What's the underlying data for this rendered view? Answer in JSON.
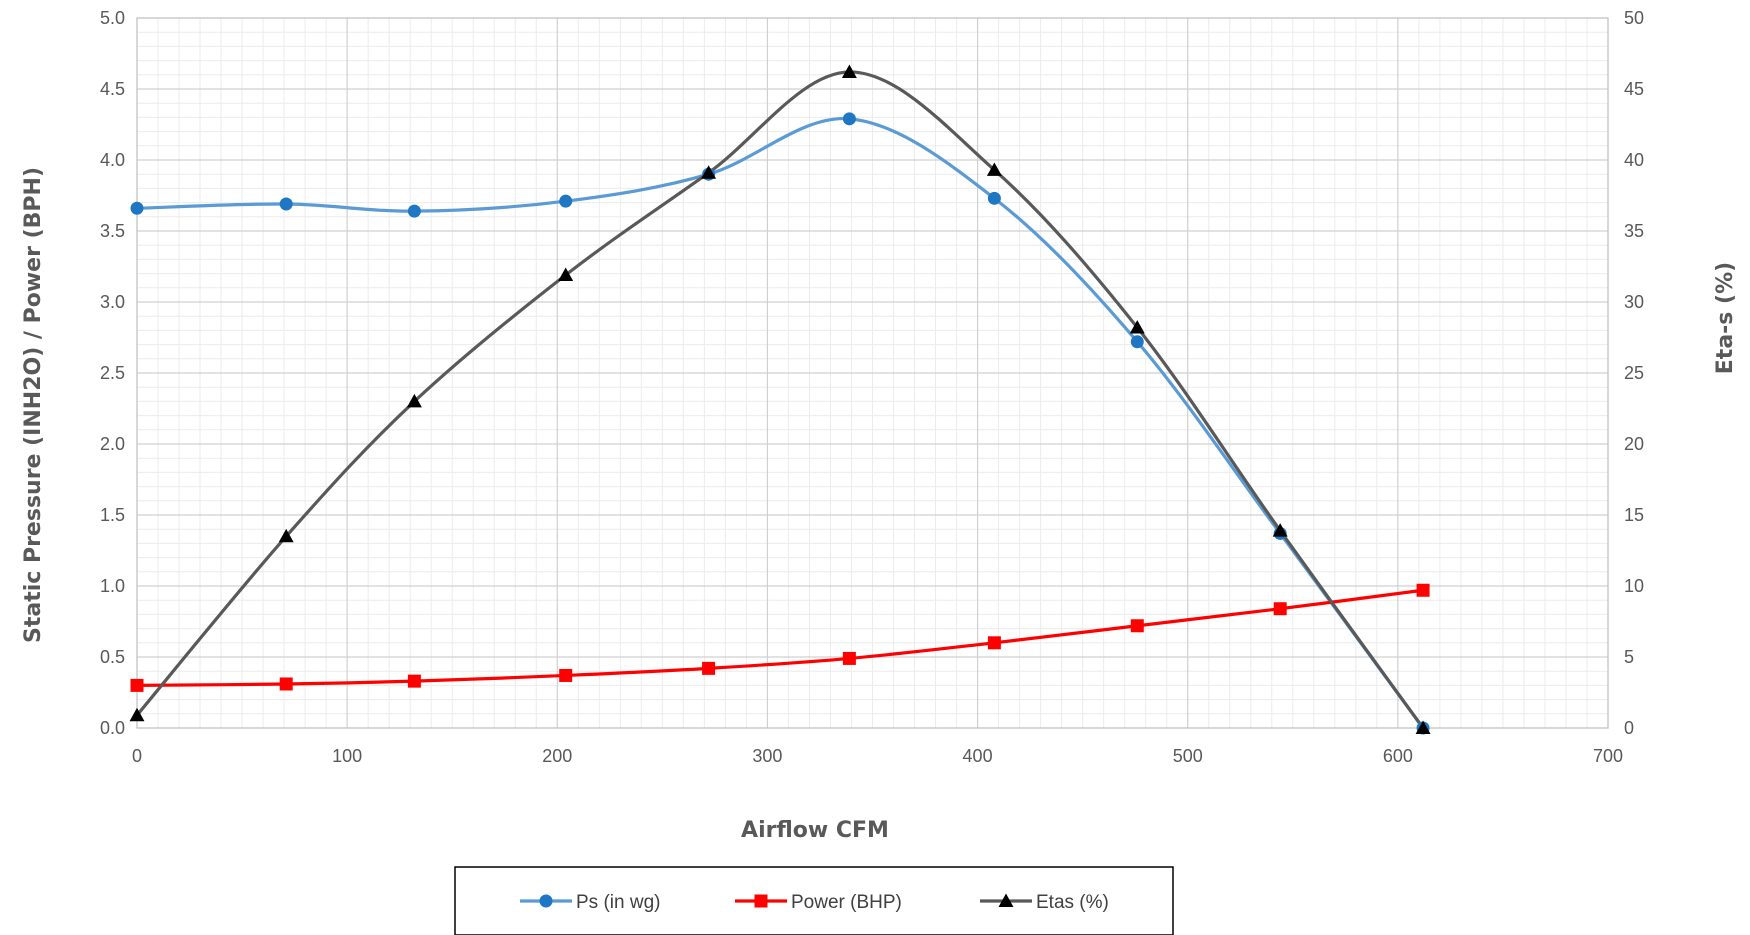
{
  "chart_data": {
    "type": "line",
    "xlabel": "Airflow CFM",
    "ylabel": "Static Pressure (INH2O) / Power (BPH)",
    "y2label": "Eta-s (%)",
    "xlim": [
      0,
      700
    ],
    "ylim": [
      0,
      5
    ],
    "y2lim": [
      0,
      50
    ],
    "x_ticks": [
      "0",
      "100",
      "200",
      "300",
      "400",
      "500",
      "600",
      "700"
    ],
    "y_ticks": [
      "0.0",
      "0.5",
      "1.0",
      "1.5",
      "2.0",
      "2.5",
      "3.0",
      "3.5",
      "4.0",
      "4.5",
      "5.0"
    ],
    "y2_ticks": [
      "0",
      "5",
      "10",
      "15",
      "20",
      "25",
      "30",
      "35",
      "40",
      "45",
      "50"
    ],
    "grid": true,
    "smooth": true,
    "legend": {
      "position": "bottom",
      "boxed": true
    },
    "series": [
      {
        "name": "Ps (in wg)",
        "axis": "left",
        "color": "#5B9BD5",
        "marker_color": "#1F77C4",
        "marker": "circle",
        "x": [
          0,
          71,
          132,
          204,
          272,
          339,
          408,
          476,
          544,
          612
        ],
        "y": [
          3.66,
          3.69,
          3.64,
          3.71,
          3.9,
          4.29,
          3.73,
          2.72,
          1.37,
          0.0
        ]
      },
      {
        "name": "Power (BHP)",
        "axis": "left",
        "color": "#FF0000",
        "marker_color": "#FF0000",
        "marker": "square",
        "x": [
          0,
          71,
          132,
          204,
          272,
          339,
          408,
          476,
          544,
          612
        ],
        "y": [
          0.3,
          0.31,
          0.33,
          0.37,
          0.42,
          0.49,
          0.6,
          0.72,
          0.84,
          0.97
        ]
      },
      {
        "name": "Etas (%)",
        "axis": "right",
        "color": "#595959",
        "marker_color": "#000000",
        "marker": "triangle",
        "x": [
          0,
          71,
          132,
          204,
          272,
          339,
          408,
          476,
          544,
          612
        ],
        "y": [
          0.9,
          13.5,
          23.0,
          31.9,
          39.1,
          46.2,
          39.3,
          28.2,
          13.9,
          0.0
        ]
      }
    ]
  }
}
